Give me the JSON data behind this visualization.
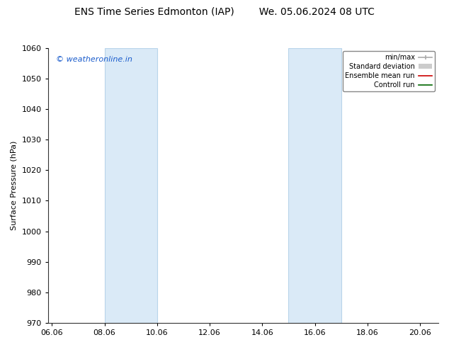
{
  "title_left": "ENS Time Series Edmonton (IAP)",
  "title_right": "We. 05.06.2024 08 UTC",
  "ylabel": "Surface Pressure (hPa)",
  "ylim": [
    970,
    1060
  ],
  "yticks": [
    970,
    980,
    990,
    1000,
    1010,
    1020,
    1030,
    1040,
    1050,
    1060
  ],
  "xlim_start": 5.85,
  "xlim_end": 20.7,
  "xtick_labels": [
    "06.06",
    "08.06",
    "10.06",
    "12.06",
    "14.06",
    "16.06",
    "18.06",
    "20.06"
  ],
  "xtick_positions": [
    6.0,
    8.0,
    10.0,
    12.0,
    14.0,
    16.0,
    18.0,
    20.0
  ],
  "shaded_bands": [
    {
      "x_start": 8.0,
      "x_end": 10.0
    },
    {
      "x_start": 15.0,
      "x_end": 17.0
    }
  ],
  "shaded_color": "#daeaf7",
  "shaded_edge_color": "#b8d4ea",
  "watermark_text": "© weatheronline.in",
  "watermark_color": "#1a5ccc",
  "background_color": "#ffffff",
  "legend_entries": [
    {
      "label": "min/max",
      "color": "#aaaaaa",
      "type": "line_with_caps"
    },
    {
      "label": "Standard deviation",
      "color": "#cccccc",
      "type": "thick_line"
    },
    {
      "label": "Ensemble mean run",
      "color": "#cc0000",
      "type": "line"
    },
    {
      "label": "Controll run",
      "color": "#006600",
      "type": "line"
    }
  ],
  "title_fontsize": 10,
  "tick_label_fontsize": 8,
  "ylabel_fontsize": 8,
  "watermark_fontsize": 8
}
